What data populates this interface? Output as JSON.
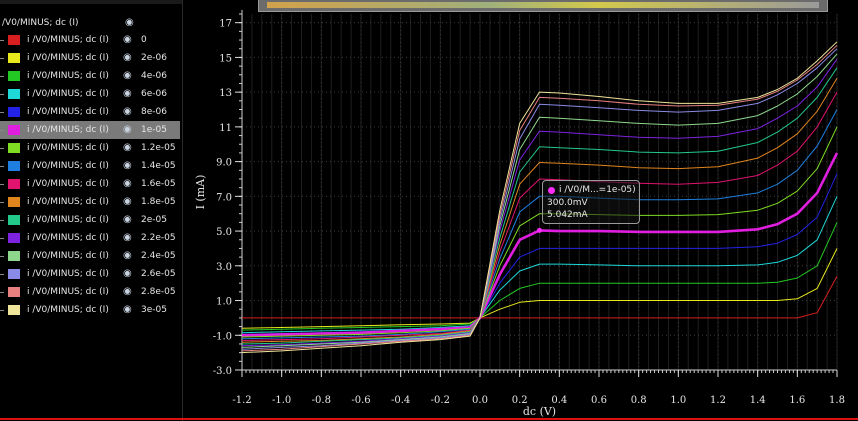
{
  "legend": {
    "header_label": "/V0/MINUS; dc (I)",
    "items": [
      {
        "label": "i /V0/MINUS; dc (I)",
        "value": "0",
        "color": "#d81e1e"
      },
      {
        "label": "i /V0/MINUS; dc (I)",
        "value": "2e-06",
        "color": "#e8e81c"
      },
      {
        "label": "i /V0/MINUS; dc (I)",
        "value": "4e-06",
        "color": "#22c922"
      },
      {
        "label": "i /V0/MINUS; dc (I)",
        "value": "6e-06",
        "color": "#1fd8d8"
      },
      {
        "label": "i /V0/MINUS; dc (I)",
        "value": "8e-06",
        "color": "#2222e6"
      },
      {
        "label": "i /V0/MINUS; dc (I)",
        "value": "1e-05",
        "color": "#e01ee0"
      },
      {
        "label": "i /V0/MINUS; dc (I)",
        "value": "1.2e-05",
        "color": "#7fdc22"
      },
      {
        "label": "i /V0/MINUS; dc (I)",
        "value": "1.4e-05",
        "color": "#1e7fe0"
      },
      {
        "label": "i /V0/MINUS; dc (I)",
        "value": "1.6e-05",
        "color": "#e0136e"
      },
      {
        "label": "i /V0/MINUS; dc (I)",
        "value": "1.8e-05",
        "color": "#e0851e"
      },
      {
        "label": "i /V0/MINUS; dc (I)",
        "value": "2e-05",
        "color": "#22c98a"
      },
      {
        "label": "i /V0/MINUS; dc (I)",
        "value": "2.2e-05",
        "color": "#7d22e0"
      },
      {
        "label": "i /V0/MINUS; dc (I)",
        "value": "2.4e-05",
        "color": "#8ed88e"
      },
      {
        "label": "i /V0/MINUS; dc (I)",
        "value": "2.6e-05",
        "color": "#8a8ae8"
      },
      {
        "label": "i /V0/MINUS; dc (I)",
        "value": "2.8e-05",
        "color": "#e88080"
      },
      {
        "label": "i /V0/MINUS; dc (I)",
        "value": "3e-05",
        "color": "#efe59a"
      }
    ],
    "selected_index": 5
  },
  "tooltip": {
    "label": "i /V0/M...=1e-05)",
    "x_value": "300.0mV",
    "y_value": "5.042mA"
  },
  "chart_data": {
    "type": "line",
    "xlabel": "dc (V)",
    "ylabel": "I (mA)",
    "xlim": [
      -1.2,
      1.8
    ],
    "ylim": [
      -3.0,
      17.5
    ],
    "grid": true,
    "x_ticks": [
      "-1.2",
      "-1.0",
      "-0.8",
      "-0.6",
      "-0.4",
      "-0.2",
      "0.0",
      "0.2",
      "0.4",
      "0.6",
      "0.8",
      "1.0",
      "1.2",
      "1.4",
      "1.6",
      "1.8"
    ],
    "y_ticks": [
      "-3.0",
      "-1.0",
      "1.0",
      "3.0",
      "5.0",
      "7.0",
      "9.0",
      "11",
      "13",
      "15",
      "17"
    ],
    "x_tick_values": [
      -1.2,
      -1.0,
      -0.8,
      -0.6,
      -0.4,
      -0.2,
      0.0,
      0.2,
      0.4,
      0.6,
      0.8,
      1.0,
      1.2,
      1.4,
      1.6,
      1.8
    ],
    "y_tick_values": [
      -3,
      -1,
      1,
      3,
      5,
      7,
      9,
      11,
      13,
      15,
      17
    ],
    "x": [
      -1.2,
      -1.0,
      -0.8,
      -0.6,
      -0.4,
      -0.2,
      -0.05,
      0.0,
      0.1,
      0.2,
      0.3,
      0.4,
      0.6,
      0.8,
      1.0,
      1.2,
      1.4,
      1.5,
      1.6,
      1.7,
      1.8
    ],
    "series": [
      {
        "name": "0",
        "values": [
          0,
          0,
          0,
          0,
          0,
          0,
          0,
          0,
          0,
          0,
          0,
          0,
          0,
          0,
          0,
          0,
          0,
          0,
          0,
          0.3,
          2.4
        ]
      },
      {
        "name": "2e-06",
        "values": [
          -0.6,
          -0.55,
          -0.5,
          -0.45,
          -0.4,
          -0.35,
          -0.3,
          0,
          0.5,
          0.9,
          1.0,
          1.0,
          1.0,
          1.0,
          1.0,
          1.0,
          1.0,
          1.0,
          1.1,
          1.7,
          4.0
        ]
      },
      {
        "name": "4e-06",
        "values": [
          -0.7,
          -0.65,
          -0.6,
          -0.55,
          -0.5,
          -0.45,
          -0.35,
          0,
          1.0,
          1.7,
          2.0,
          2.0,
          2.0,
          2.0,
          2.0,
          2.0,
          2.0,
          2.05,
          2.3,
          3.0,
          5.5
        ]
      },
      {
        "name": "6e-06",
        "values": [
          -0.85,
          -0.8,
          -0.75,
          -0.7,
          -0.65,
          -0.55,
          -0.45,
          0,
          1.6,
          2.7,
          3.1,
          3.1,
          3.05,
          3.0,
          3.0,
          3.0,
          3.05,
          3.2,
          3.6,
          4.5,
          7.0
        ]
      },
      {
        "name": "8e-06",
        "values": [
          -0.95,
          -0.9,
          -0.85,
          -0.8,
          -0.7,
          -0.6,
          -0.5,
          0,
          2.0,
          3.5,
          4.0,
          4.0,
          4.0,
          4.0,
          4.0,
          4.0,
          4.1,
          4.3,
          4.8,
          5.8,
          8.3
        ]
      },
      {
        "name": "1e-05",
        "values": [
          -1.0,
          -0.95,
          -0.9,
          -0.85,
          -0.75,
          -0.65,
          -0.55,
          0,
          2.5,
          4.5,
          5.04,
          5.0,
          5.0,
          4.95,
          4.95,
          4.95,
          5.1,
          5.4,
          6.0,
          7.2,
          9.5
        ]
      },
      {
        "name": "1.2e-05",
        "values": [
          -1.1,
          -1.05,
          -1.0,
          -0.95,
          -0.85,
          -0.75,
          -0.6,
          0,
          3.0,
          5.3,
          6.0,
          6.0,
          5.95,
          5.9,
          5.9,
          5.95,
          6.2,
          6.6,
          7.3,
          8.6,
          11.0
        ]
      },
      {
        "name": "1.4e-05",
        "values": [
          -1.2,
          -1.15,
          -1.1,
          -1.05,
          -0.95,
          -0.8,
          -0.65,
          0,
          3.4,
          6.1,
          7.0,
          7.0,
          6.9,
          6.8,
          6.8,
          6.85,
          7.2,
          7.7,
          8.5,
          9.9,
          12.0
        ]
      },
      {
        "name": "1.6e-05",
        "values": [
          -1.3,
          -1.25,
          -1.2,
          -1.1,
          -1.0,
          -0.9,
          -0.7,
          0,
          3.8,
          6.9,
          8.0,
          7.95,
          7.85,
          7.75,
          7.7,
          7.8,
          8.2,
          8.8,
          9.6,
          11.0,
          13.0
        ]
      },
      {
        "name": "1.8e-05",
        "values": [
          -1.4,
          -1.35,
          -1.3,
          -1.2,
          -1.1,
          -0.95,
          -0.75,
          0,
          4.2,
          7.7,
          8.95,
          8.9,
          8.8,
          8.65,
          8.6,
          8.7,
          9.2,
          9.8,
          10.6,
          11.9,
          13.8
        ]
      },
      {
        "name": "2e-05",
        "values": [
          -1.5,
          -1.45,
          -1.35,
          -1.25,
          -1.15,
          -1.0,
          -0.8,
          0,
          4.6,
          8.4,
          9.85,
          9.8,
          9.7,
          9.55,
          9.5,
          9.6,
          10.1,
          10.7,
          11.5,
          12.7,
          14.4
        ]
      },
      {
        "name": "2.2e-05",
        "values": [
          -1.6,
          -1.55,
          -1.45,
          -1.35,
          -1.2,
          -1.05,
          -0.85,
          0,
          5.0,
          9.1,
          10.75,
          10.7,
          10.55,
          10.4,
          10.35,
          10.45,
          10.9,
          11.5,
          12.2,
          13.3,
          14.9
        ]
      },
      {
        "name": "2.4e-05",
        "values": [
          -1.7,
          -1.6,
          -1.5,
          -1.4,
          -1.25,
          -1.1,
          -0.9,
          0,
          5.3,
          9.7,
          11.55,
          11.5,
          11.35,
          11.2,
          11.1,
          11.2,
          11.65,
          12.2,
          12.9,
          13.9,
          15.2
        ]
      },
      {
        "name": "2.6e-05",
        "values": [
          -1.8,
          -1.7,
          -1.6,
          -1.45,
          -1.3,
          -1.15,
          -0.95,
          0,
          5.6,
          10.3,
          12.3,
          12.25,
          12.1,
          11.95,
          11.85,
          11.95,
          12.35,
          12.85,
          13.5,
          14.4,
          15.5
        ]
      },
      {
        "name": "2.8e-05",
        "values": [
          -1.9,
          -1.8,
          -1.65,
          -1.5,
          -1.35,
          -1.2,
          -1.0,
          0,
          5.9,
          10.8,
          12.7,
          12.65,
          12.5,
          12.3,
          12.2,
          12.25,
          12.6,
          13.05,
          13.7,
          14.6,
          15.7
        ]
      },
      {
        "name": "3e-05",
        "values": [
          -2.0,
          -1.9,
          -1.75,
          -1.6,
          -1.4,
          -1.25,
          -1.05,
          0,
          6.2,
          11.2,
          13.0,
          12.95,
          12.75,
          12.5,
          12.35,
          12.35,
          12.7,
          13.15,
          13.8,
          14.8,
          15.9
        ]
      }
    ],
    "marker": {
      "series": "1e-05",
      "x": 0.3,
      "y": 5.042
    }
  }
}
